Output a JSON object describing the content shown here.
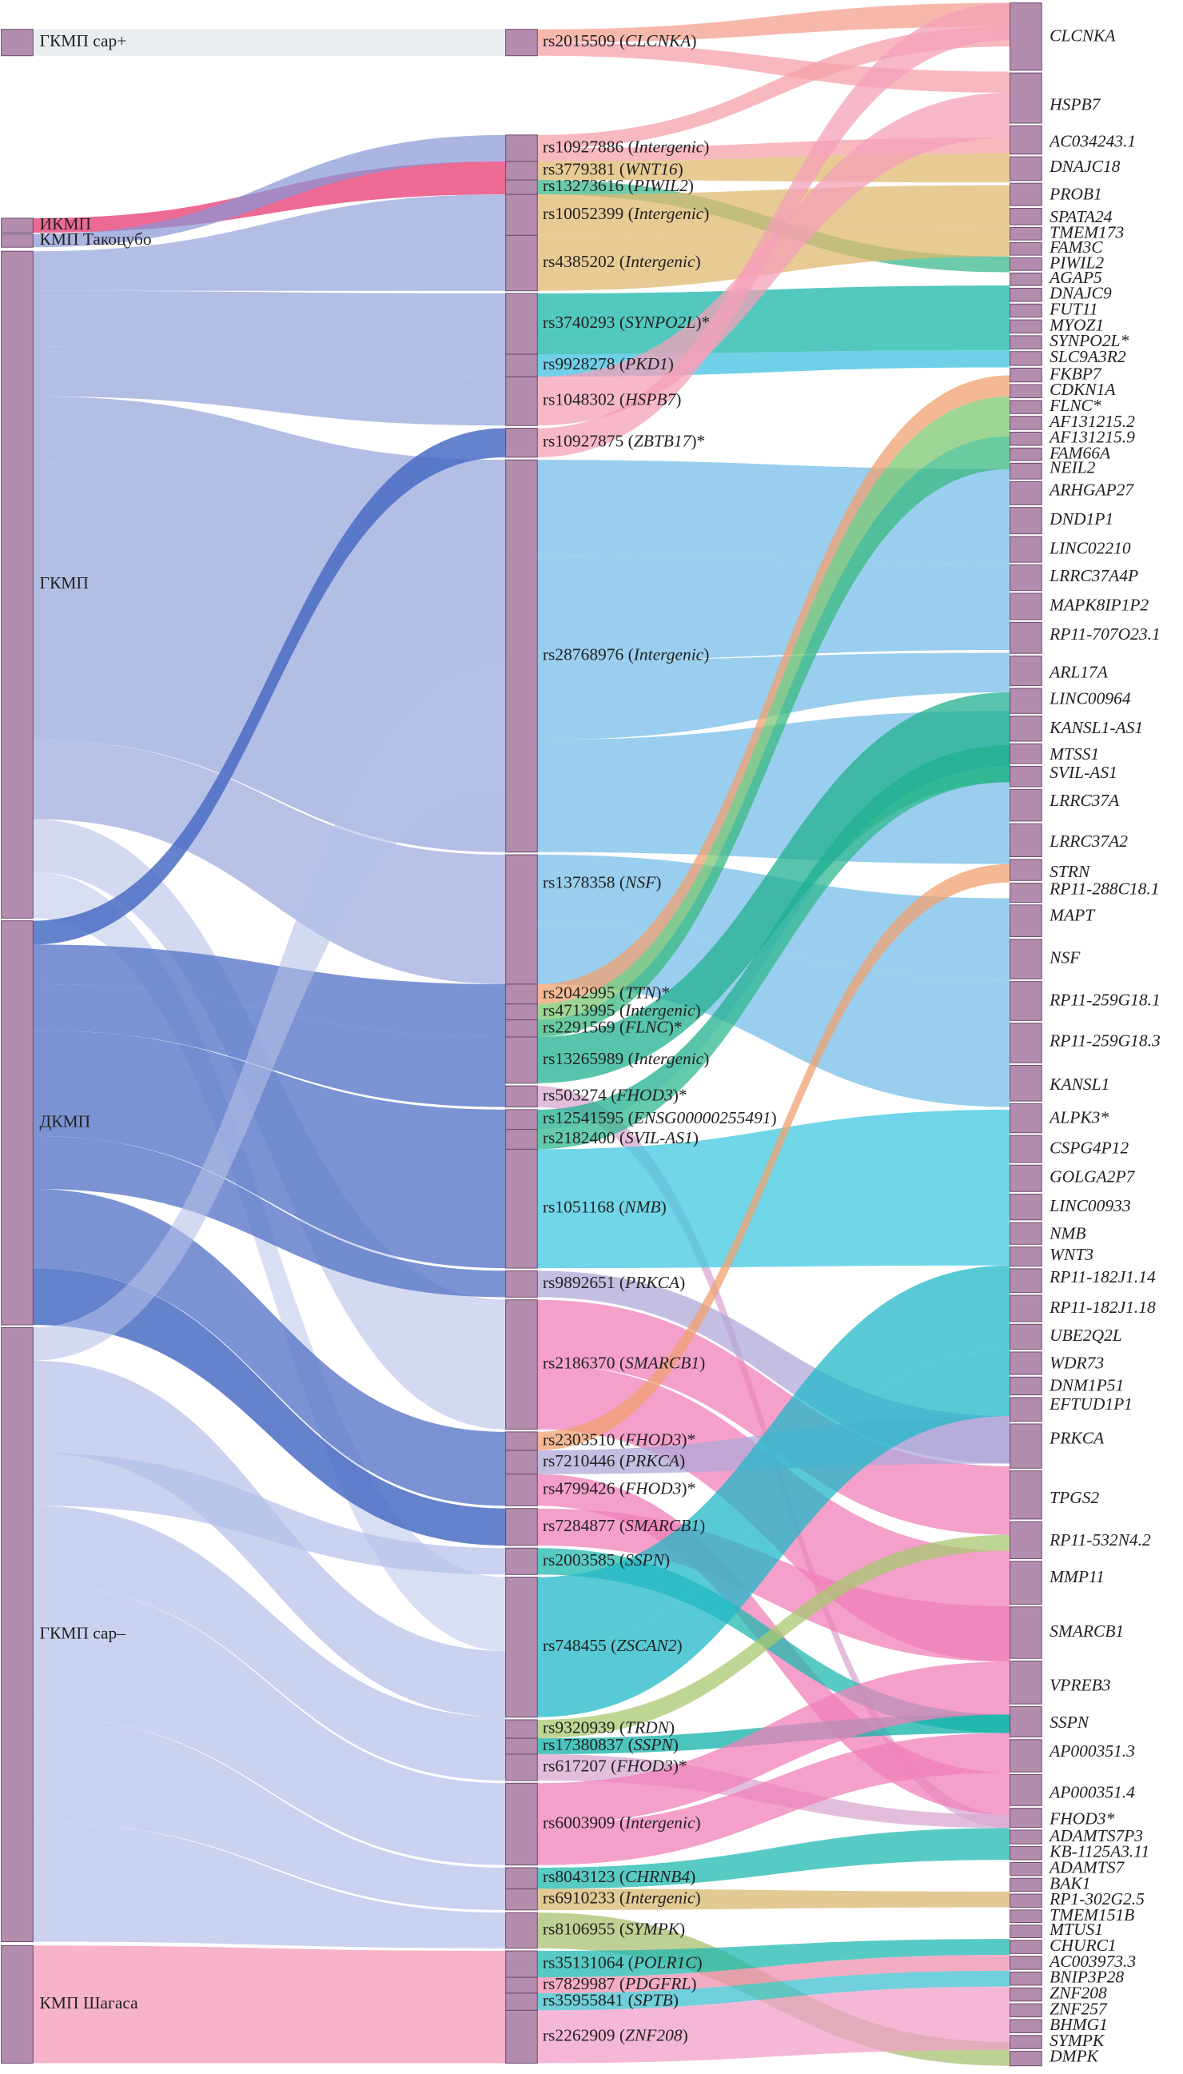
{
  "diagram": {
    "left_nodes": [
      "ГКМП сар+",
      "ИКМП",
      "КМП Такоцубо",
      "ГКМП",
      "ДКМП",
      "ГКМП сар–",
      "КМП Шагаса"
    ],
    "middle_nodes": [
      "rs2015509 (CLCNKA)",
      "rs10927886 (Intergenic)",
      "rs3779381 (WNT16)",
      "rs13273616 (PIWIL2)",
      "rs10052399 (Intergenic)",
      "rs4385202 (Intergenic)",
      "rs3740293 (SYNPO2L)*",
      "rs9928278 (PKD1)",
      "rs1048302 (HSPB7)",
      "rs10927875 (ZBTB17)*",
      "rs28768976 (Intergenic)",
      "rs1378358 (NSF)",
      "rs2042995 (TTN)*",
      "rs4713995 (Intergenic)",
      "rs2291569 (FLNC)*",
      "rs13265989 (Intergenic)",
      "rs503274 (FHOD3)*",
      "rs12541595 (ENSG00000255491)",
      "rs2182400 (SVIL-AS1)",
      "rs1051168 (NMB)",
      "rs9892651 (PRKCA)",
      "rs2186370 (SMARCB1)",
      "rs2303510 (FHOD3)*",
      "rs7210446 (PRKCA)",
      "rs4799426 (FHOD3)*",
      "rs7284877 (SMARCB1)",
      "rs2003585 (SSPN)",
      "rs748455 (ZSCAN2)",
      "rs9320939 (TRDN)",
      "rs17380837 (SSPN)",
      "rs617207 (FHOD3)*",
      "rs6003909 (Intergenic)",
      "rs8043123 (CHRNB4)",
      "rs6910233 (Intergenic)",
      "rs8106955 (SYMPK)",
      "rs35131064 (POLR1C)",
      "rs7829987 (PDGFRL)",
      "rs35955841 (SPTB)",
      "rs2262909 (ZNF208)"
    ],
    "right_nodes": [
      "CLCNKA",
      "HSPB7",
      "AC034243.1",
      "DNAJC18",
      "PROB1",
      "SPATA24",
      "TMEM173",
      "FAM3C",
      "PIWIL2",
      "AGAP5",
      "DNAJC9",
      "FUT11",
      "MYOZ1",
      "SYNPO2L*",
      "SLC9A3R2",
      "FKBP7",
      "CDKN1A",
      "FLNC*",
      "AF131215.2",
      "AF131215.9",
      "FAM66A",
      "NEIL2",
      "ARHGAP27",
      "DND1P1",
      "LINC02210",
      "LRRC37A4P",
      "MAPK8IP1P2",
      "RP11-707O23.1",
      "ARL17A",
      "LINC00964",
      "KANSL1-AS1",
      "MTSS1",
      "SVIL-AS1",
      "LRRC37A",
      "LRRC37A2",
      "STRN",
      "RP11-288C18.1",
      "MAPT",
      "NSF",
      "RP11-259G18.1",
      "RP11-259G18.3",
      "KANSL1",
      "ALPK3*",
      "CSPG4P12",
      "GOLGA2P7",
      "LINC00933",
      "NMB",
      "WNT3",
      "RP11-182J1.14",
      "RP11-182J1.18",
      "UBE2Q2L",
      "WDR73",
      "DNM1P51",
      "EFTUD1P1",
      "PRKCA",
      "TPGS2",
      "RP11-532N4.2",
      "MMP11",
      "SMARCB1",
      "VPREB3",
      "SSPN",
      "AP000351.3",
      "AP000351.4",
      "FHOD3*",
      "ADAMTS7P3",
      "KB-1125A3.11",
      "ADAMTS7",
      "BAK1",
      "RP1-302G2.5",
      "TMEM151B",
      "MTUS1",
      "CHURC1",
      "AC003973.3",
      "BNIP3P28",
      "ZNF208",
      "ZNF257",
      "BHMG1",
      "SYMPK",
      "DMPK"
    ]
  }
}
